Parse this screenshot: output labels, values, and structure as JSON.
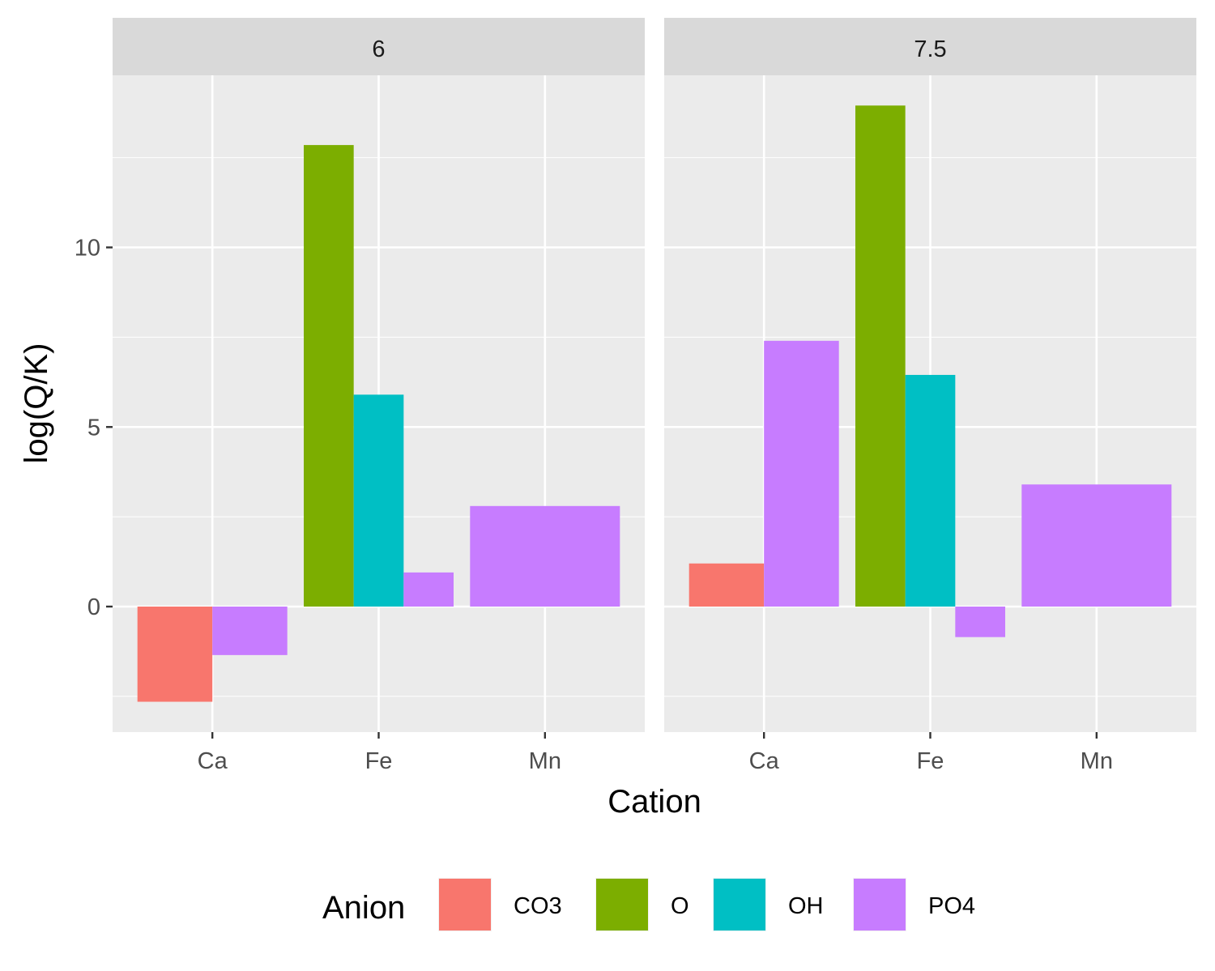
{
  "chart_data": {
    "type": "bar",
    "layout": "faceted grouped bar (dodged)",
    "facet_var": "pH",
    "xlabel": "Cation",
    "ylabel": "log(Q/K)",
    "categories": [
      "Ca",
      "Fe",
      "Mn"
    ],
    "ylim": [
      -3.4,
      14.4
    ],
    "yticks": [
      0,
      5,
      10
    ],
    "grid": true,
    "legend": {
      "title": "Anion",
      "position": "bottom",
      "entries": [
        "CO3",
        "O",
        "OH",
        "PO4"
      ]
    },
    "colors": {
      "CO3": "#F8766D",
      "O": "#7CAE00",
      "OH": "#00BFC4",
      "PO4": "#C77CFF"
    },
    "facets": [
      {
        "label": "6",
        "groups": [
          {
            "cation": "Ca",
            "bars": [
              {
                "anion": "CO3",
                "value": -2.65
              },
              {
                "anion": "PO4",
                "value": -1.35
              }
            ]
          },
          {
            "cation": "Fe",
            "bars": [
              {
                "anion": "O",
                "value": 12.85
              },
              {
                "anion": "OH",
                "value": 5.9
              },
              {
                "anion": "PO4",
                "value": 0.95
              }
            ]
          },
          {
            "cation": "Mn",
            "bars": [
              {
                "anion": "PO4",
                "value": 2.8
              }
            ]
          }
        ]
      },
      {
        "label": "7.5",
        "groups": [
          {
            "cation": "Ca",
            "bars": [
              {
                "anion": "CO3",
                "value": 1.2
              },
              {
                "anion": "PO4",
                "value": 7.4
              }
            ]
          },
          {
            "cation": "Fe",
            "bars": [
              {
                "anion": "O",
                "value": 13.95
              },
              {
                "anion": "OH",
                "value": 6.45
              },
              {
                "anion": "PO4",
                "value": -0.85
              }
            ]
          },
          {
            "cation": "Mn",
            "bars": [
              {
                "anion": "PO4",
                "value": 3.4
              }
            ]
          }
        ]
      }
    ]
  }
}
